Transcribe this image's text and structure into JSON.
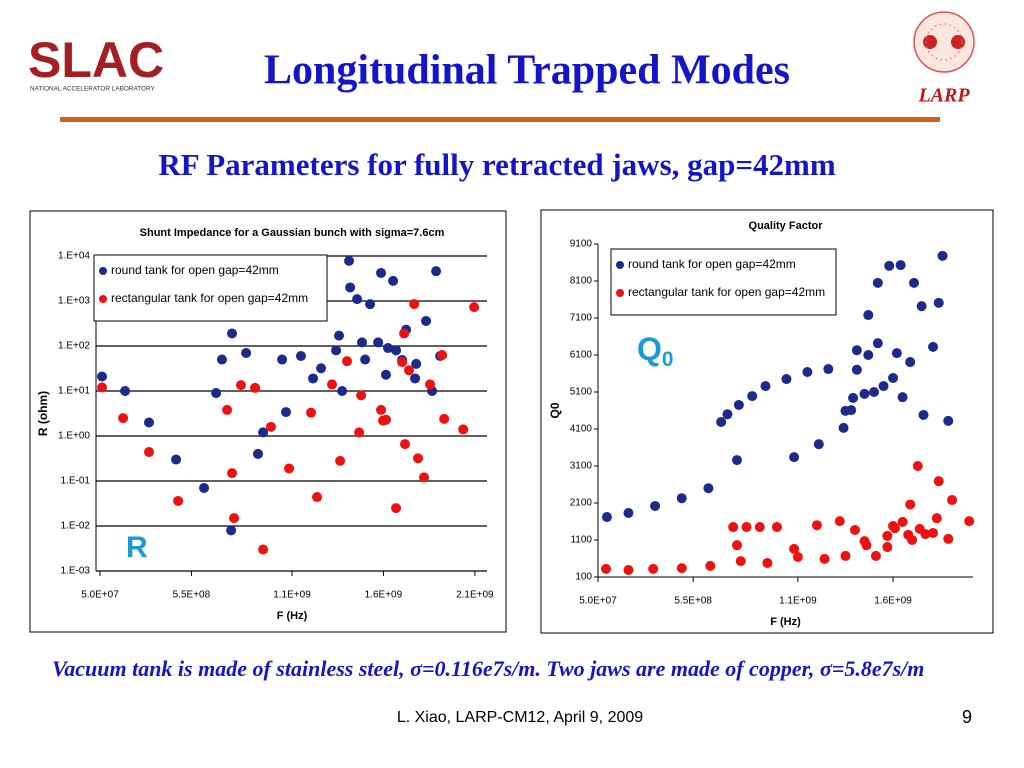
{
  "slide": {
    "logo_text": "SLAC",
    "logo_subtext": "NATIONAL ACCELERATOR LABORATORY",
    "larp_text": "LARP",
    "title": "Longitudinal Trapped Modes",
    "subtitle": "RF Parameters for fully retracted jaws, gap=42mm",
    "note": "Vacuum tank is made of stainless steel, σ=0.116e7s/m. Two jaws are made of copper, σ=5.8e7s/m",
    "footer": "L. Xiao, LARP-CM12, April 9, 2009",
    "page_number": "9"
  },
  "chart_data": [
    {
      "type": "scatter",
      "title": "Shunt Impedance for a Gaussian bunch with sigma=7.6cm",
      "x_label": "F (Hz)",
      "y_label": "R (ohm)",
      "annotation": "R",
      "ylog": true,
      "grid": true,
      "legend": "upper left",
      "xlim": [
        50000000,
        2150000000
      ],
      "xticks": [
        {
          "value": 50000000,
          "label": "5.0E+07"
        },
        {
          "value": 550000000,
          "label": "5.5E+08"
        },
        {
          "value": 1100000000,
          "label": "1.1E+09"
        },
        {
          "value": 1600000000,
          "label": "1.6E+09"
        },
        {
          "value": 2100000000,
          "label": "2.1E+09"
        }
      ],
      "ylim": [
        0.001,
        10000
      ],
      "yticks": [
        {
          "value": 10000,
          "label": "1.E+04"
        },
        {
          "value": 1000,
          "label": "1.E+03"
        },
        {
          "value": 100,
          "label": "1.E+02"
        },
        {
          "value": 10,
          "label": "1.E+01"
        },
        {
          "value": 1,
          "label": "1.E+00"
        },
        {
          "value": 0.1,
          "label": "1.E-01"
        },
        {
          "value": 0.01,
          "label": "1.E-02"
        },
        {
          "value": 0.001,
          "label": "1.E-03"
        }
      ],
      "series": [
        {
          "name": "round tank for open gap=42mm",
          "color": "#1c2a8c",
          "x": [
            61000000,
            187000000,
            318000000,
            466000000,
            619000000,
            685000000,
            717000000,
            772000000,
            767000000,
            849000000,
            914000000,
            942000000,
            1046000000,
            1067000000,
            1149000000,
            1215000000,
            1259000000,
            1341000000,
            1357000000,
            1374000000,
            1412000000,
            1418000000,
            1456000000,
            1483000000,
            1500000000,
            1527000000,
            1571000000,
            1587000000,
            1614000000,
            1625000000,
            1653000000,
            1669000000,
            1702000000,
            1724000000,
            1773000000,
            1779000000,
            1833000000,
            1866000000,
            1888000000,
            1910000000
          ],
          "values": [
            21,
            10,
            2,
            0.3,
            0.07,
            9,
            50,
            190,
            0.008,
            70,
            0.4,
            1.2,
            50,
            3.4,
            60,
            19,
            32,
            80,
            170,
            10,
            7800,
            2000,
            1100,
            120,
            50,
            850,
            120,
            4200,
            23,
            90,
            2800,
            80,
            49,
            230,
            19,
            40,
            360,
            10,
            4600,
            60
          ]
        },
        {
          "name": "rectangular tank for open gap=42mm",
          "color": "#ee1111",
          "x": [
            61000000,
            176000000,
            318000000,
            477000000,
            745000000,
            772000000,
            783000000,
            821000000,
            898000000,
            942000000,
            985000000,
            1084000000,
            1204000000,
            1237000000,
            1319000000,
            1363000000,
            1401000000,
            1467000000,
            1478000000,
            1587000000,
            1598000000,
            1614000000,
            1669000000,
            1702000000,
            1713000000,
            1718000000,
            1740000000,
            1768000000,
            1789000000,
            1822000000,
            1855000000,
            1921000000,
            1932000000,
            2036000000,
            2096000000
          ],
          "values": [
            12,
            2.5,
            0.44,
            0.036,
            3.8,
            0.15,
            0.015,
            13.5,
            11.7,
            0.003,
            1.6,
            0.19,
            3.3,
            0.044,
            14,
            0.28,
            46,
            1.2,
            8,
            3.8,
            2.2,
            2.3,
            0.025,
            44,
            190,
            0.66,
            29,
            860,
            0.32,
            0.12,
            14,
            63,
            2.4,
            1.4,
            730
          ]
        }
      ]
    },
    {
      "type": "scatter",
      "title": "Quality Factor",
      "x_label": "F (Hz)",
      "y_label": "Q0",
      "annotation": "Q",
      "annotation_subscript": "0",
      "ylog": false,
      "grid": false,
      "legend": "upper left",
      "xlim": [
        50000000,
        2020000000
      ],
      "xticks": [
        {
          "value": 50000000,
          "label": "5.0E+07"
        },
        {
          "value": 550000000,
          "label": "5.5E+08"
        },
        {
          "value": 1100000000,
          "label": "1.1E+09"
        },
        {
          "value": 1600000000,
          "label": "1.6E+09"
        }
      ],
      "ylim": [
        100,
        9100
      ],
      "yticks": [
        100,
        1100,
        2100,
        3100,
        4100,
        5100,
        6100,
        7100,
        8100,
        9100
      ],
      "series": [
        {
          "name": "round tank for open gap=42mm",
          "color": "#1c2a8c",
          "x": [
            97000000,
            210000000,
            350000000,
            490000000,
            630000000,
            697000000,
            730000000,
            780000000,
            790000000,
            860000000,
            930000000,
            1040000000,
            1080000000,
            1150000000,
            1210000000,
            1260000000,
            1340000000,
            1350000000,
            1380000000,
            1390000000,
            1410000000,
            1410000000,
            1450000000,
            1470000000,
            1470000000,
            1500000000,
            1520000000,
            1520000000,
            1550000000,
            1580000000,
            1600000000,
            1620000000,
            1640000000,
            1650000000,
            1690000000,
            1710000000,
            1750000000,
            1760000000,
            1810000000,
            1840000000,
            1860000000,
            1890000000
          ],
          "values": [
            1720,
            1830,
            2020,
            2230,
            2500,
            4290,
            4500,
            3260,
            4750,
            4990,
            5260,
            5450,
            3340,
            5640,
            3690,
            5720,
            4130,
            4590,
            4610,
            4940,
            6230,
            5700,
            5050,
            7180,
            6100,
            5100,
            6420,
            8050,
            5260,
            8510,
            5480,
            6150,
            8530,
            4960,
            5910,
            8050,
            7420,
            4480,
            6320,
            7510,
            8780,
            4320
          ]
        },
        {
          "name": "rectangular tank for open gap=42mm",
          "color": "#ee1111",
          "x": [
            92000000,
            210000000,
            340000000,
            490000000,
            640000000,
            760000000,
            780000000,
            800000000,
            830000000,
            900000000,
            940000000,
            990000000,
            1080000000,
            1100000000,
            1200000000,
            1240000000,
            1320000000,
            1350000000,
            1400000000,
            1450000000,
            1460000000,
            1510000000,
            1570000000,
            1570000000,
            1600000000,
            1610000000,
            1650000000,
            1680000000,
            1690000000,
            1700000000,
            1730000000,
            1740000000,
            1770000000,
            1810000000,
            1830000000,
            1840000000,
            1890000000,
            1910000000,
            2000000000
          ],
          "values": [
            320,
            290,
            320,
            340,
            400,
            1450,
            960,
            530,
            1450,
            1450,
            480,
            1450,
            860,
            640,
            1500,
            590,
            1610,
            670,
            1370,
            1070,
            960,
            670,
            1210,
            910,
            1480,
            1420,
            1590,
            1240,
            2060,
            1100,
            3100,
            1400,
            1260,
            1290,
            1690,
            2690,
            1130,
            2180,
            1610
          ]
        }
      ]
    }
  ]
}
